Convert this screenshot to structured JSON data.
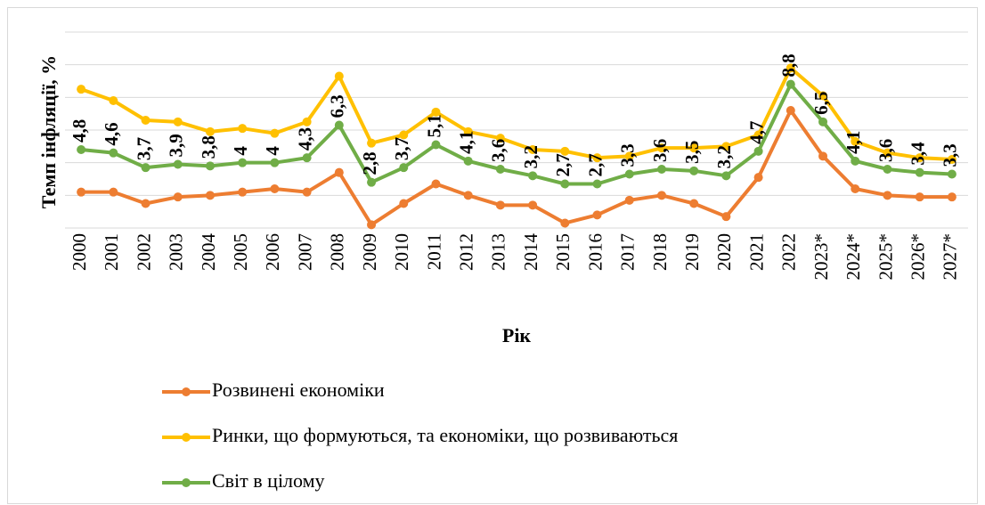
{
  "chart_data": {
    "type": "line",
    "ylabel": "Темп інфляції, %",
    "xlabel": "Рік",
    "categories": [
      "2000",
      "2001",
      "2002",
      "2003",
      "2004",
      "2005",
      "2006",
      "2007",
      "2008",
      "2009",
      "2010",
      "2011",
      "2012",
      "2013",
      "2014",
      "2015",
      "2016",
      "2017",
      "2018",
      "2019",
      "2020",
      "2021",
      "2022",
      "2023*",
      "2024*",
      "2025*",
      "2026*",
      "2027*"
    ],
    "ylim": [
      0,
      12
    ],
    "yticks": [
      0,
      2,
      4,
      6,
      8,
      10,
      12
    ],
    "grid": true,
    "series": [
      {
        "name": "Розвинені економіки",
        "color": "#ed7d31",
        "values": [
          2.2,
          2.2,
          1.5,
          1.9,
          2.0,
          2.2,
          2.4,
          2.2,
          3.4,
          0.2,
          1.5,
          2.7,
          2.0,
          1.4,
          1.4,
          0.3,
          0.8,
          1.7,
          2.0,
          1.5,
          0.7,
          3.1,
          7.2,
          4.4,
          2.4,
          2.0,
          1.9,
          1.9
        ]
      },
      {
        "name": "Ринки, що формуються, та економіки, що розвиваються",
        "color": "#ffc000",
        "values": [
          8.5,
          7.8,
          6.6,
          6.5,
          5.9,
          6.1,
          5.8,
          6.5,
          9.3,
          5.2,
          5.7,
          7.1,
          5.9,
          5.5,
          4.8,
          4.7,
          4.3,
          4.4,
          4.9,
          4.9,
          5.0,
          5.7,
          9.8,
          8.1,
          5.3,
          4.6,
          4.3,
          4.2
        ]
      },
      {
        "name": "Світ в цілому",
        "color": "#70ad47",
        "values": [
          4.8,
          4.6,
          3.7,
          3.9,
          3.8,
          4,
          4,
          4.3,
          6.3,
          2.8,
          3.7,
          5.1,
          4.1,
          3.6,
          3.2,
          2.7,
          2.7,
          3.3,
          3.6,
          3.5,
          3.2,
          4.7,
          8.8,
          6.5,
          4.1,
          3.6,
          3.4,
          3.3
        ],
        "value_labels": [
          "4,8",
          "4,6",
          "3,7",
          "3,9",
          "3,8",
          "4",
          "4",
          "4,3",
          "6,3",
          "2,8",
          "3,7",
          "5,1",
          "4,1",
          "3,6",
          "3,2",
          "2,7",
          "2,7",
          "3,3",
          "3,6",
          "3,5",
          "3,2",
          "4,7",
          "8,8",
          "6,5",
          "4,1",
          "3,6",
          "3,4",
          "3,3"
        ]
      }
    ]
  }
}
